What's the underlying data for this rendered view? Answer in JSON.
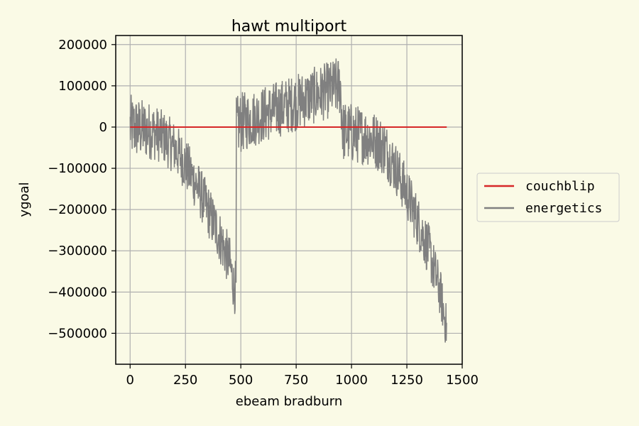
{
  "chart_data": {
    "type": "line",
    "title": "hawt multiport",
    "xlabel": "ebeam bradburn",
    "ylabel": "ygoal",
    "xlim": [
      -65,
      1500
    ],
    "ylim": [
      -575000,
      222000
    ],
    "xticks": [
      0,
      250,
      500,
      750,
      1000,
      1250,
      1500
    ],
    "xtick_labels": [
      "0",
      "250",
      "500",
      "750",
      "1000",
      "1250",
      "1500"
    ],
    "yticks": [
      200000,
      100000,
      0,
      -100000,
      -200000,
      -300000,
      -400000,
      -500000
    ],
    "ytick_labels": [
      "200000",
      "100000",
      "0",
      "−100000",
      "−200000",
      "−300000",
      "−400000",
      "−500000"
    ],
    "grid": true,
    "legend_position": "outside-right",
    "series": [
      {
        "name": "couchblip",
        "color": "#d62728",
        "x": [
          0,
          1430
        ],
        "y": [
          0,
          0
        ]
      },
      {
        "name": "energetics",
        "color": "#808080",
        "x": [
          0,
          50,
          100,
          150,
          200,
          250,
          300,
          350,
          400,
          450,
          470,
          480,
          500,
          550,
          600,
          650,
          700,
          750,
          800,
          850,
          900,
          950,
          960,
          1000,
          1050,
          1100,
          1150,
          1200,
          1250,
          1300,
          1350,
          1400,
          1430
        ],
        "y": [
          0,
          -5000,
          -10000,
          -25000,
          -50000,
          -90000,
          -140000,
          -200000,
          -260000,
          -330000,
          -390000,
          0,
          10000,
          20000,
          30000,
          40000,
          50000,
          60000,
          70000,
          80000,
          90000,
          100000,
          -10000,
          -15000,
          -20000,
          -30000,
          -50000,
          -100000,
          -160000,
          -230000,
          -300000,
          -400000,
          -490000
        ],
        "noise": [
          80000,
          75000,
          70000,
          65000,
          65000,
          65000,
          65000,
          65000,
          65000,
          65000,
          60000,
          75000,
          75000,
          70000,
          70000,
          70000,
          70000,
          70000,
          70000,
          70000,
          70000,
          75000,
          75000,
          75000,
          70000,
          70000,
          70000,
          65000,
          65000,
          65000,
          65000,
          60000,
          55000
        ]
      }
    ]
  }
}
